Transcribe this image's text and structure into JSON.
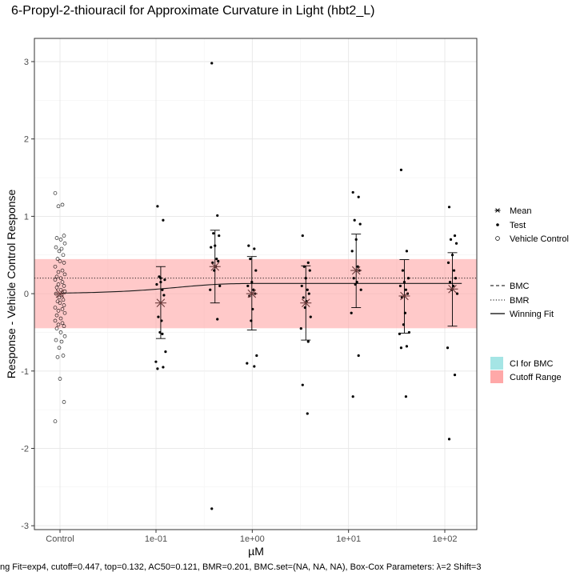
{
  "chart_data": {
    "type": "scatter",
    "title": "6-Propyl-2-thiouracil for Approximate Curvature in Light (hbt2_L)",
    "xlabel": "µM",
    "ylabel": "Response - Vehicle Control Response",
    "footer": "ng Fit=exp4, cutoff=0.447, top=0.132, AC50=0.121, BMR=0.201, BMC.set=(NA, NA, NA), Box-Cox Parameters: λ=2 Shift=3",
    "x_scale": "log10",
    "x_ticks": [
      {
        "label": "Control",
        "value": "control"
      },
      {
        "label": "1e-01",
        "value": 0.1
      },
      {
        "label": "1e+00",
        "value": 1
      },
      {
        "label": "1e+01",
        "value": 10
      },
      {
        "label": "1e+02",
        "value": 100
      }
    ],
    "ylim": [
      -3.05,
      3.3
    ],
    "y_ticks": [
      -3,
      -2,
      -1,
      0,
      1,
      2,
      3
    ],
    "grid": true,
    "cutoff": 0.447,
    "bmr": 0.201,
    "fit": {
      "model": "exp4",
      "top": 0.132,
      "ac50": 0.121
    },
    "vehicle_control": [
      1.3,
      1.15,
      1.13,
      0.75,
      0.72,
      0.7,
      0.65,
      0.6,
      0.58,
      0.55,
      0.5,
      0.45,
      0.42,
      0.4,
      0.35,
      0.3,
      0.28,
      0.25,
      0.22,
      0.2,
      0.18,
      0.15,
      0.12,
      0.1,
      0.08,
      0.05,
      0.03,
      0.0,
      -0.02,
      -0.05,
      -0.08,
      -0.1,
      -0.12,
      -0.15,
      -0.18,
      -0.2,
      -0.22,
      -0.25,
      -0.28,
      -0.32,
      -0.35,
      -0.38,
      -0.4,
      -0.42,
      -0.45,
      -0.5,
      -0.55,
      -0.6,
      -0.62,
      -0.7,
      -0.8,
      -0.82,
      -1.1,
      -1.4,
      -1.65
    ],
    "dose_groups": [
      {
        "conc": 0.112,
        "mean": -0.12,
        "err_low": -0.58,
        "err_high": 0.35,
        "points": [
          1.13,
          0.95,
          0.22,
          0.18,
          0.15,
          0.12,
          0.05,
          -0.02,
          -0.3,
          -0.35,
          -0.5,
          -0.75,
          -0.88,
          -0.95,
          -0.97,
          -0.52,
          0.2
        ]
      },
      {
        "conc": 0.41,
        "mean": 0.35,
        "err_low": -0.12,
        "err_high": 0.82,
        "points": [
          2.98,
          1.01,
          0.78,
          0.75,
          0.62,
          0.6,
          0.45,
          0.42,
          0.4,
          0.35,
          0.3,
          0.1,
          0.05,
          -0.33,
          -2.78
        ]
      },
      {
        "conc": 0.99,
        "mean": 0.0,
        "err_low": -0.47,
        "err_high": 0.48,
        "points": [
          0.62,
          0.58,
          0.45,
          0.3,
          0.15,
          0.1,
          0.05,
          0.0,
          -0.03,
          -0.2,
          -0.35,
          -0.8,
          -0.9,
          -0.94
        ]
      },
      {
        "conc": 3.6,
        "mean": -0.12,
        "err_low": -0.6,
        "err_high": 0.36,
        "points": [
          0.75,
          0.4,
          0.35,
          0.3,
          0.2,
          0.1,
          0.05,
          0.0,
          -0.05,
          -0.1,
          -0.18,
          -0.3,
          -0.45,
          -0.62,
          -1.18,
          -1.55
        ]
      },
      {
        "conc": 12.0,
        "mean": 0.3,
        "err_low": -0.18,
        "err_high": 0.77,
        "points": [
          1.31,
          1.25,
          0.95,
          0.9,
          0.7,
          0.55,
          0.35,
          0.3,
          0.2,
          0.15,
          0.12,
          0.05,
          -0.25,
          -0.8,
          -1.33
        ]
      },
      {
        "conc": 38.0,
        "mean": -0.03,
        "err_low": -0.51,
        "err_high": 0.44,
        "points": [
          1.6,
          0.55,
          0.3,
          0.2,
          0.15,
          0.1,
          0.05,
          0.0,
          -0.05,
          -0.25,
          -0.4,
          -0.5,
          -0.52,
          -0.68,
          -0.7,
          -1.33
        ]
      },
      {
        "conc": 120.0,
        "mean": 0.06,
        "err_low": -0.42,
        "err_high": 0.53,
        "points": [
          1.12,
          0.75,
          0.7,
          0.65,
          0.5,
          0.4,
          0.3,
          0.2,
          0.15,
          0.1,
          0.05,
          0.0,
          -0.7,
          -1.05,
          -1.88
        ]
      }
    ],
    "legend": {
      "group1": [
        "Mean",
        "Test",
        "Vehicle Control"
      ],
      "group2": [
        "BMC",
        "BMR",
        "Winning Fit"
      ],
      "group3": [
        "CI for BMC",
        "Cutoff Range"
      ]
    },
    "colors": {
      "cutoff_fill": "#ffa8a8",
      "ci_fill": "#a5e5e5",
      "mean_marker": "#6b3b3b",
      "points": "#000000",
      "fit_line": "#1a1a1a"
    }
  }
}
